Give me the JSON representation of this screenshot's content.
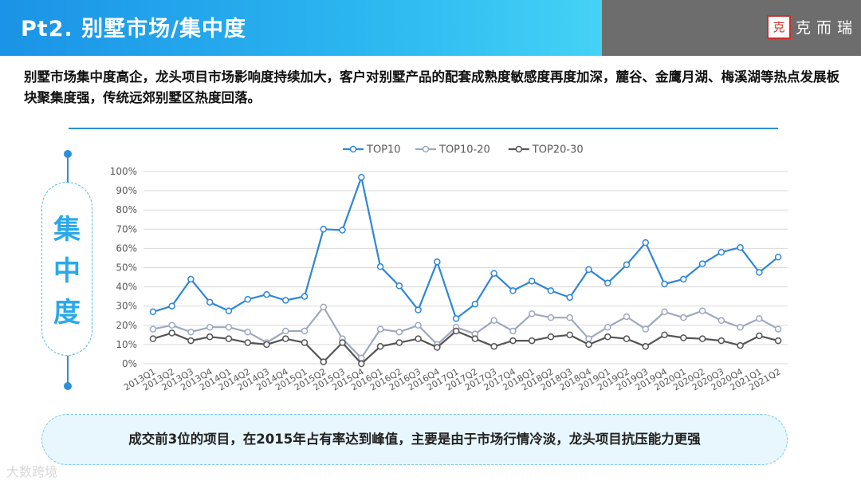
{
  "header": {
    "title": "Pt2. 别墅市场/集中度",
    "logo_mark": "克",
    "logo_text": "克而瑞",
    "colors": {
      "primary": "#1b93e6",
      "gray": "#6d6d6d"
    }
  },
  "intro_text": "别墅市场集中度高企，龙头项目市场影响度持续加大，客户对别墅产品的配套成熟度敏感度再度加深，麓谷、金鹰月湖、梅溪湖等热点发展板块聚集度强，传统远郊别墅区热度回落。",
  "side_label": "集\n中\n度",
  "conclusion": "成交前3位的项目，在2015年占有率达到峰值，主要是由于市场行情冷淡，龙头项目抗压能力更强",
  "watermark": "大数跨境",
  "chart_data": {
    "type": "line",
    "categories": [
      "2013Q1",
      "2013Q2",
      "2013Q3",
      "2013Q4",
      "2014Q1",
      "2014Q2",
      "2014Q3",
      "2014Q4",
      "2015Q1",
      "2015Q2",
      "2015Q3",
      "2015Q4",
      "2016Q1",
      "2016Q2",
      "2016Q3",
      "2016Q4",
      "2017Q1",
      "2017Q2",
      "2017Q3",
      "2017Q4",
      "2018Q1",
      "2018Q2",
      "2018Q3",
      "2018Q4",
      "2019Q1",
      "2019Q2",
      "2019Q3",
      "2019Q4",
      "2020Q1",
      "2020Q2",
      "2020Q3",
      "2020Q4",
      "2021Q1",
      "2021Q2"
    ],
    "series": [
      {
        "name": "TOP10",
        "color": "#2e86d9",
        "values": [
          27,
          30,
          44,
          32,
          27.5,
          33.5,
          36,
          33,
          35,
          70,
          69.5,
          97,
          50.5,
          40.5,
          28,
          53,
          23.5,
          31,
          47,
          38,
          43,
          38,
          34.5,
          49,
          42,
          51.5,
          63,
          41.5,
          44,
          52,
          58,
          60.5,
          47.5,
          55.5
        ]
      },
      {
        "name": "TOP10-20",
        "color": "#9fa8bf",
        "values": [
          18,
          20,
          16.5,
          19,
          19,
          16.5,
          11,
          17,
          17,
          29.5,
          13,
          3,
          18,
          16.5,
          20,
          10,
          19,
          15.5,
          22.5,
          17,
          26,
          24,
          24,
          13,
          19,
          24.5,
          18,
          27,
          24,
          27.5,
          22.5,
          19,
          23.5,
          18
        ]
      },
      {
        "name": "TOP20-30",
        "color": "#555555",
        "values": [
          13,
          16,
          12,
          14,
          13,
          11,
          10,
          13,
          11,
          1,
          11,
          0,
          9,
          11,
          13,
          8.5,
          17,
          13,
          9,
          12,
          12,
          14,
          15,
          10,
          14,
          13,
          9,
          15,
          13.5,
          13,
          12,
          9.5,
          14.5,
          12
        ]
      }
    ],
    "ylim": [
      0,
      100
    ],
    "yticks": [
      "0%",
      "10%",
      "20%",
      "30%",
      "40%",
      "50%",
      "60%",
      "70%",
      "80%",
      "90%",
      "100%"
    ],
    "grid": true,
    "legend": "top"
  }
}
